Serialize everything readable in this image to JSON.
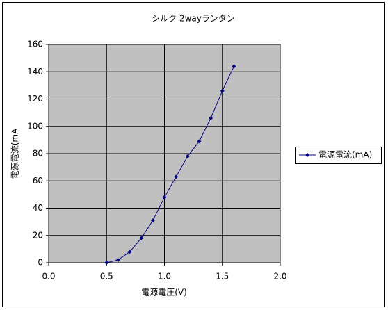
{
  "chart_data": {
    "type": "line",
    "title": "シルク 2wayランタン",
    "xlabel": "電源電圧(V)",
    "ylabel": "電源電流(mA",
    "x": [
      0.5,
      0.6,
      0.7,
      0.8,
      0.9,
      1.0,
      1.1,
      1.2,
      1.3,
      1.4,
      1.5,
      1.6
    ],
    "series": [
      {
        "name": "電源電流(mA)",
        "color": "#000080",
        "values": [
          0,
          2,
          8,
          18,
          31,
          48,
          63,
          78,
          89,
          106,
          126,
          144
        ]
      }
    ],
    "xlim": [
      0,
      2
    ],
    "xticks": [
      {
        "value": 0,
        "label": "0.0"
      },
      0.5,
      {
        "value": 1,
        "label": "1.0"
      },
      1.5,
      {
        "value": 2,
        "label": "2.0"
      }
    ],
    "ylim": [
      0,
      160
    ],
    "yticks": [
      0,
      20,
      40,
      60,
      80,
      100,
      120,
      140,
      160
    ],
    "grid": true,
    "legend": "right"
  }
}
